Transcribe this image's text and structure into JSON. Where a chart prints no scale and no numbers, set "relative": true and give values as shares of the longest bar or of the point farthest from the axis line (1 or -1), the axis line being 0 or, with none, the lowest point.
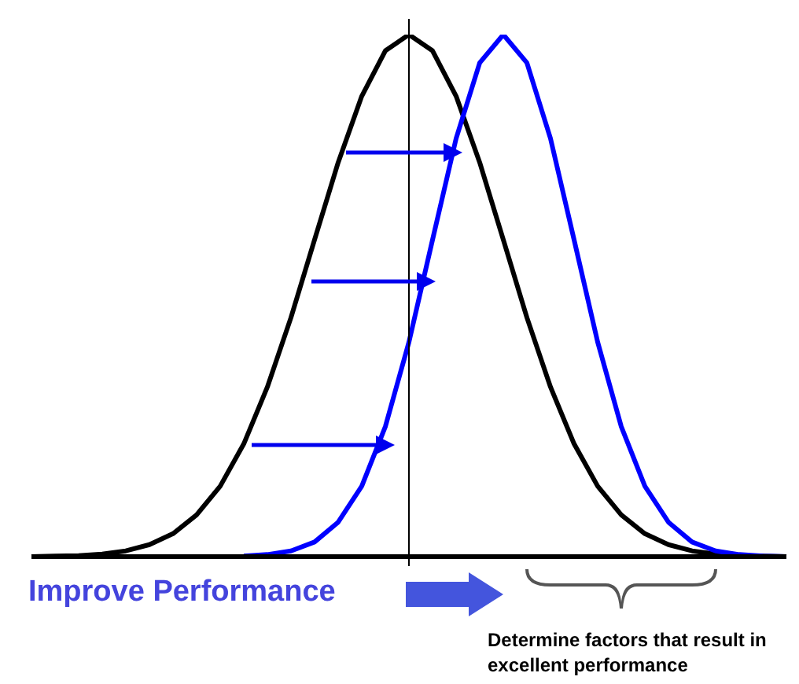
{
  "chart_data": {
    "type": "line",
    "relative": true,
    "categories": [
      null,
      null,
      null,
      null,
      null,
      null,
      null,
      null,
      null,
      null,
      null,
      null,
      null,
      null,
      null,
      null,
      null,
      null,
      null,
      null,
      null,
      null,
      null,
      null,
      null,
      null,
      null,
      null,
      null,
      null,
      null,
      null,
      null
    ],
    "series": [
      {
        "color": "#000000",
        "values": [
          0,
          0.001,
          0.002,
          0.005,
          0.011,
          0.023,
          0.044,
          0.08,
          0.135,
          0.216,
          0.325,
          0.458,
          0.607,
          0.755,
          0.882,
          0.969,
          1,
          0.969,
          0.882,
          0.755,
          0.607,
          0.458,
          0.325,
          0.216,
          0.135,
          0.08,
          0.044,
          0.023,
          0.011,
          0.005,
          0.002,
          0.001,
          0
        ]
      },
      {
        "color": "#0000ff",
        "values": [
          null,
          null,
          null,
          null,
          null,
          null,
          null,
          null,
          null,
          0.001,
          0.004,
          0.011,
          0.028,
          0.066,
          0.135,
          0.249,
          0.411,
          0.607,
          0.801,
          0.946,
          1,
          0.946,
          0.801,
          0.607,
          0.411,
          0.249,
          0.135,
          0.066,
          0.028,
          0.011,
          0.004,
          0.001,
          0
        ]
      }
    ],
    "annotations": [
      "Improve Performance",
      "Determine factors that result in  excellent performance"
    ]
  }
}
